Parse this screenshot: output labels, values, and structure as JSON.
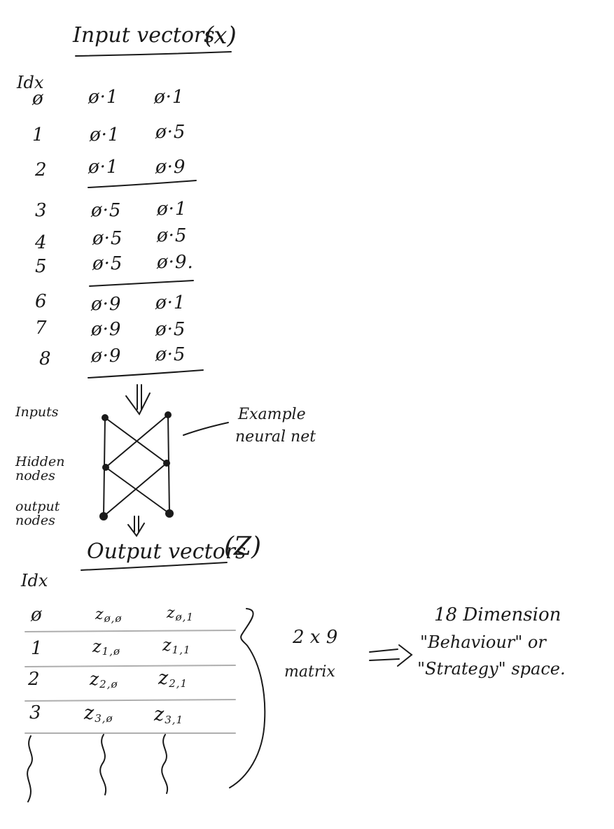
{
  "input_section": {
    "title": "Input vectors",
    "symbol": "(x)",
    "idx_header": "Idx",
    "rows": [
      {
        "idx": "ø",
        "a": "ø·1",
        "b": "ø·1"
      },
      {
        "idx": "1",
        "a": "ø·1",
        "b": "ø·5"
      },
      {
        "idx": "2",
        "a": "ø·1",
        "b": "ø·9"
      },
      {
        "idx": "3",
        "a": "ø·5",
        "b": "ø·1"
      },
      {
        "idx": "4",
        "a": "ø·5",
        "b": "ø·5"
      },
      {
        "idx": "5",
        "a": "ø·5",
        "b": "ø·9."
      },
      {
        "idx": "6",
        "a": "ø·9",
        "b": "ø·1"
      },
      {
        "idx": "7",
        "a": "ø·9",
        "b": "ø·5"
      },
      {
        "idx": "8",
        "a": "ø·9",
        "b": "ø·5"
      }
    ]
  },
  "network": {
    "layer_labels": {
      "inputs": "Inputs",
      "hidden": "Hidden nodes",
      "output": "output nodes"
    },
    "annotation_line1": "Example",
    "annotation_line2": "neural net"
  },
  "output_section": {
    "title": "Output vectors",
    "symbol": "(Z)",
    "idx_header": "Idx",
    "rows": [
      {
        "idx": "ø",
        "a_main": "z",
        "a_sub": "ø,ø",
        "b_main": "z",
        "b_sub": "ø,1"
      },
      {
        "idx": "1",
        "a_main": "z",
        "a_sub": "1,ø",
        "b_main": "z",
        "b_sub": "1,1"
      },
      {
        "idx": "2",
        "a_main": "z",
        "a_sub": "2,ø",
        "b_main": "z",
        "b_sub": "2,1"
      },
      {
        "idx": "3",
        "a_main": "z",
        "a_sub": "3,ø",
        "b_main": "z",
        "b_sub": "3,1"
      }
    ]
  },
  "matrix_note": {
    "size": "2 x 9",
    "word": "matrix",
    "arrow": "=>"
  },
  "space_note": {
    "line1": "18 Dimension",
    "line2": "\"Behaviour\" or",
    "line3": "\"Strategy\" space."
  }
}
